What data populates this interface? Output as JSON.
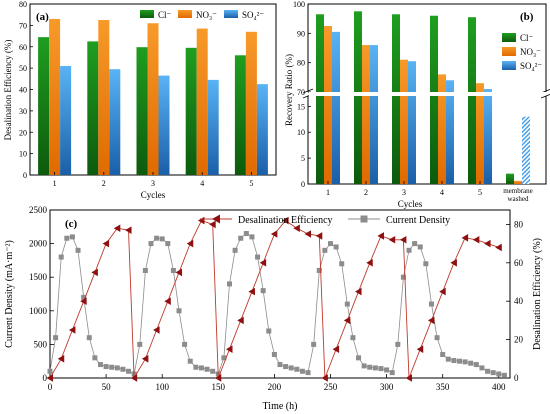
{
  "colors": {
    "cl": "#1a8a1a",
    "no3": "#f28c0f",
    "so4": "#3d9be9",
    "de_line": "#c0392b",
    "de_marker": "#8e1010",
    "cd": "#8c8c8c"
  },
  "chart_data": [
    {
      "panel": "(a)",
      "type": "bar",
      "ylabel": "Desalination Efficiency (%)",
      "xlabel": "Cycles",
      "ylim": [
        0,
        80
      ],
      "yticks": [
        "0",
        "10",
        "20",
        "30",
        "40",
        "50",
        "60",
        "70",
        "80"
      ],
      "categories": [
        "1",
        "2",
        "3",
        "4",
        "5"
      ],
      "legend_position": "top",
      "series": [
        {
          "name": "Cl⁻",
          "color_key": "cl",
          "values": [
            64.5,
            62.5,
            59.8,
            59.5,
            56
          ]
        },
        {
          "name": "NO₃⁻",
          "color_key": "no3",
          "values": [
            73,
            72.5,
            71,
            68.5,
            67
          ]
        },
        {
          "name": "SO₄²⁻",
          "color_key": "so4",
          "values": [
            51,
            49.5,
            46.5,
            44.5,
            42.5
          ]
        }
      ]
    },
    {
      "panel": "(b)",
      "type": "bar",
      "ylabel": "Recovery Ratio (%)",
      "xlabel": "Cycles",
      "broken_axis": true,
      "ylim_upper": [
        70,
        100
      ],
      "yticks_upper": [
        "70",
        "80",
        "90",
        "100"
      ],
      "ylim_lower": [
        0,
        17
      ],
      "yticks_lower": [
        "0",
        "5",
        "10",
        "15"
      ],
      "categories": [
        "1",
        "2",
        "3",
        "4",
        "5",
        "membrane washed"
      ],
      "legend_position": "right",
      "series": [
        {
          "name": "Cl⁻",
          "color_key": "cl",
          "values": [
            96.5,
            97.5,
            96.5,
            96,
            95.5,
            2
          ]
        },
        {
          "name": "NO₃⁻",
          "color_key": "no3",
          "values": [
            92.5,
            86,
            81,
            76,
            73,
            0.6
          ]
        },
        {
          "name": "SO₄²⁻",
          "color_key": "so4",
          "values": [
            90.5,
            86,
            80.5,
            74,
            71,
            13
          ]
        }
      ]
    },
    {
      "panel": "(c)",
      "type": "line",
      "xlabel": "Time (h)",
      "ylabel": "Current Density (mA·m⁻²)",
      "y2label": "Desalination Efficiency (%)",
      "xlim": [
        0,
        410
      ],
      "xticks": [
        "0",
        "50",
        "100",
        "150",
        "200",
        "250",
        "300",
        "350",
        "400"
      ],
      "ylim": [
        0,
        2500
      ],
      "yticks": [
        "0",
        "500",
        "1000",
        "1500",
        "2000",
        "2500"
      ],
      "y2lim": [
        0,
        87.5
      ],
      "y2ticks": [
        "0",
        "20",
        "40",
        "60",
        "80"
      ],
      "legend_position": "top",
      "series": [
        {
          "name": "Desalination Efficiency",
          "axis": "right",
          "marker": "triangle-left",
          "x": [
            0,
            10,
            20,
            30,
            40,
            50,
            60,
            70,
            75,
            85,
            95,
            105,
            115,
            125,
            135,
            145,
            150,
            160,
            170,
            180,
            190,
            200,
            210,
            220,
            230,
            240,
            245,
            255,
            265,
            275,
            285,
            295,
            305,
            315,
            320,
            330,
            340,
            350,
            360,
            370,
            380,
            390,
            400
          ],
          "y": [
            0,
            10,
            25,
            40,
            55,
            70,
            78,
            77,
            0,
            10,
            25,
            40,
            55,
            70,
            82,
            80,
            0,
            15,
            30,
            45,
            60,
            75,
            82,
            78,
            75,
            74,
            0,
            15,
            30,
            45,
            60,
            74,
            72,
            72,
            0,
            15,
            30,
            45,
            60,
            73,
            72,
            70,
            68
          ]
        },
        {
          "name": "Current Density",
          "axis": "left",
          "marker": "square",
          "x": [
            0,
            5,
            10,
            15,
            20,
            25,
            30,
            35,
            40,
            45,
            50,
            55,
            60,
            65,
            70,
            75,
            80,
            85,
            90,
            95,
            100,
            105,
            110,
            115,
            120,
            125,
            130,
            135,
            140,
            145,
            150,
            155,
            160,
            165,
            170,
            175,
            180,
            185,
            190,
            195,
            200,
            205,
            210,
            215,
            220,
            225,
            230,
            235,
            240,
            245,
            250,
            255,
            260,
            265,
            270,
            275,
            280,
            285,
            290,
            295,
            300,
            305,
            310,
            315,
            320,
            325,
            330,
            335,
            340,
            345,
            350,
            355,
            360,
            365,
            370,
            375,
            380,
            385,
            390,
            395,
            400,
            405
          ],
          "y": [
            100,
            600,
            1800,
            2080,
            2100,
            1900,
            1200,
            600,
            300,
            200,
            170,
            160,
            150,
            130,
            100,
            60,
            500,
            1600,
            2000,
            2080,
            2070,
            2000,
            1600,
            1000,
            500,
            250,
            160,
            150,
            130,
            100,
            60,
            300,
            1400,
            1900,
            2080,
            2150,
            2100,
            1800,
            1300,
            700,
            350,
            200,
            170,
            150,
            130,
            100,
            80,
            500,
            1600,
            1900,
            2000,
            1950,
            1700,
            1100,
            600,
            300,
            180,
            160,
            150,
            140,
            120,
            80,
            500,
            1500,
            1900,
            2000,
            1950,
            1700,
            1100,
            600,
            350,
            280,
            260,
            250,
            240,
            220,
            200,
            150,
            100,
            80,
            60,
            40
          ]
        }
      ]
    }
  ]
}
